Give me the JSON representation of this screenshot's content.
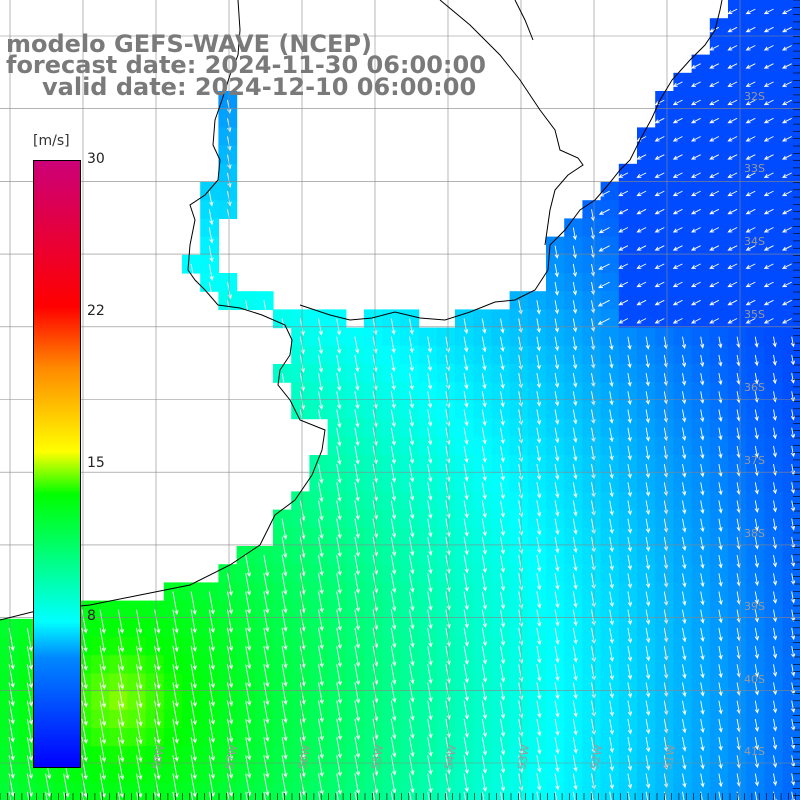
{
  "header": {
    "line1": "modelo GEFS-WAVE (NCEP)",
    "line2": "forecast date: 2024-11-30 06:00:00",
    "line3": "valid date: 2024-12-10 06:00:00"
  },
  "colorbar": {
    "unit": "[m/s]",
    "ticks": [
      "30",
      "22",
      "15",
      "8"
    ],
    "range": [
      0,
      30
    ],
    "colors": [
      "#0000ff",
      "#0088ff",
      "#00ffff",
      "#00ff00",
      "#ffff00",
      "#ff8800",
      "#ff0000",
      "#cc0077"
    ]
  },
  "map": {
    "lat_labels": [
      "32S",
      "33S",
      "34S",
      "35S",
      "36S",
      "37S",
      "38S",
      "39S",
      "40S",
      "41S"
    ],
    "lon_labels": [
      "58W",
      "57W",
      "56W",
      "55W",
      "54W",
      "53W",
      "52W",
      "51W"
    ],
    "grid": true,
    "land_color": "#ffffff",
    "field": "wind speed with direction arrows"
  }
}
